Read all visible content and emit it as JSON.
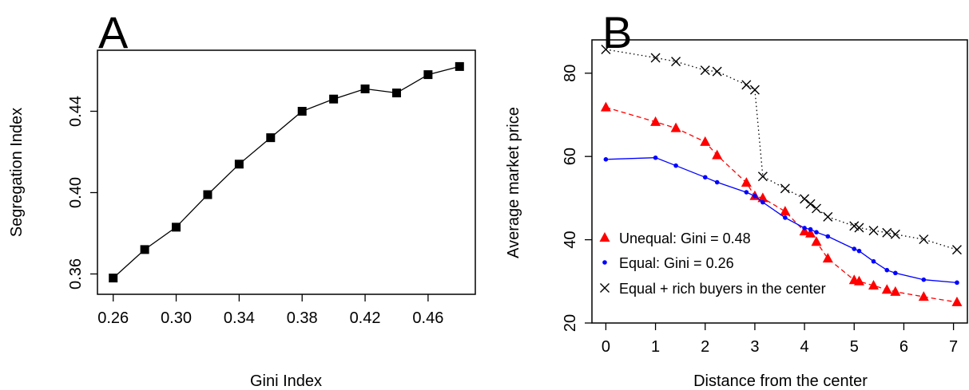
{
  "chart_data": [
    {
      "panel_label": "A",
      "type": "line",
      "xlabel": "Gini Index",
      "ylabel": "Segregation Index",
      "xlim": [
        0.25,
        0.49
      ],
      "ylim": [
        0.35,
        0.47
      ],
      "xticks": [
        0.26,
        0.3,
        0.34,
        0.38,
        0.42,
        0.46
      ],
      "xtick_labels": [
        "0.26",
        "0.30",
        "0.34",
        "0.38",
        "0.42",
        "0.46"
      ],
      "yticks": [
        0.36,
        0.4,
        0.44
      ],
      "ytick_labels": [
        "0.36",
        "0.40",
        "0.44"
      ],
      "grid": false,
      "series": [
        {
          "marker": "square",
          "color": "#000000",
          "x": [
            0.26,
            0.28,
            0.3,
            0.32,
            0.34,
            0.36,
            0.38,
            0.4,
            0.42,
            0.44,
            0.46,
            0.48
          ],
          "y": [
            0.358,
            0.372,
            0.383,
            0.399,
            0.414,
            0.427,
            0.44,
            0.446,
            0.451,
            0.449,
            0.458,
            0.462
          ]
        }
      ]
    },
    {
      "panel_label": "B",
      "type": "line",
      "xlabel": "Distance from the center",
      "ylabel": "Average market price",
      "xlim": [
        -0.28,
        7.28
      ],
      "ylim": [
        20,
        88
      ],
      "xticks": [
        0,
        1,
        2,
        3,
        4,
        5,
        6,
        7
      ],
      "xtick_labels": [
        "0",
        "1",
        "2",
        "3",
        "4",
        "5",
        "6",
        "7"
      ],
      "yticks": [
        20,
        40,
        60,
        80
      ],
      "ytick_labels": [
        "20",
        "40",
        "60",
        "80"
      ],
      "grid": false,
      "legend_position": "bottom-left",
      "series": [
        {
          "name": "Unequal: Gini = 0.48",
          "marker": "triangle",
          "line": "dashed",
          "color": "#ff0000",
          "x": [
            0,
            1,
            1.41,
            2,
            2.24,
            2.83,
            3,
            3.16,
            3.61,
            4,
            4.12,
            4.24,
            4.47,
            5,
            5.1,
            5.39,
            5.66,
            5.83,
            6.4,
            7.07
          ],
          "y": [
            71.8,
            68.3,
            66.8,
            63.5,
            60.3,
            53.7,
            50.5,
            50.0,
            46.8,
            42.0,
            41.5,
            39.5,
            35.5,
            30.3,
            30.0,
            29.0,
            28.0,
            27.5,
            26.3,
            25.0
          ]
        },
        {
          "name": "Equal: Gini = 0.26",
          "marker": "dot",
          "line": "solid",
          "color": "#0000ff",
          "x": [
            0,
            1,
            1.41,
            2,
            2.24,
            2.83,
            3,
            3.16,
            3.61,
            4,
            4.12,
            4.24,
            4.47,
            5,
            5.1,
            5.39,
            5.66,
            5.83,
            6.4,
            7.07
          ],
          "y": [
            59.3,
            59.7,
            57.8,
            55.0,
            53.8,
            51.4,
            50.5,
            49.0,
            45.3,
            42.8,
            42.5,
            41.8,
            40.8,
            37.8,
            37.3,
            34.8,
            32.7,
            32.0,
            30.4,
            29.7
          ]
        },
        {
          "name": "Equal + rich buyers in the center",
          "marker": "cross",
          "line": "dotted",
          "color": "#000000",
          "x": [
            0,
            1,
            1.41,
            2,
            2.24,
            2.83,
            3,
            3.16,
            3.61,
            4,
            4.12,
            4.24,
            4.47,
            5,
            5.1,
            5.39,
            5.66,
            5.83,
            6.4,
            7.07
          ],
          "y": [
            85.7,
            83.7,
            82.8,
            80.7,
            80.4,
            77.2,
            76.0,
            55.2,
            52.3,
            49.8,
            48.6,
            47.5,
            45.5,
            43.3,
            42.9,
            42.2,
            41.7,
            41.3,
            40.1,
            37.6
          ]
        }
      ]
    }
  ]
}
